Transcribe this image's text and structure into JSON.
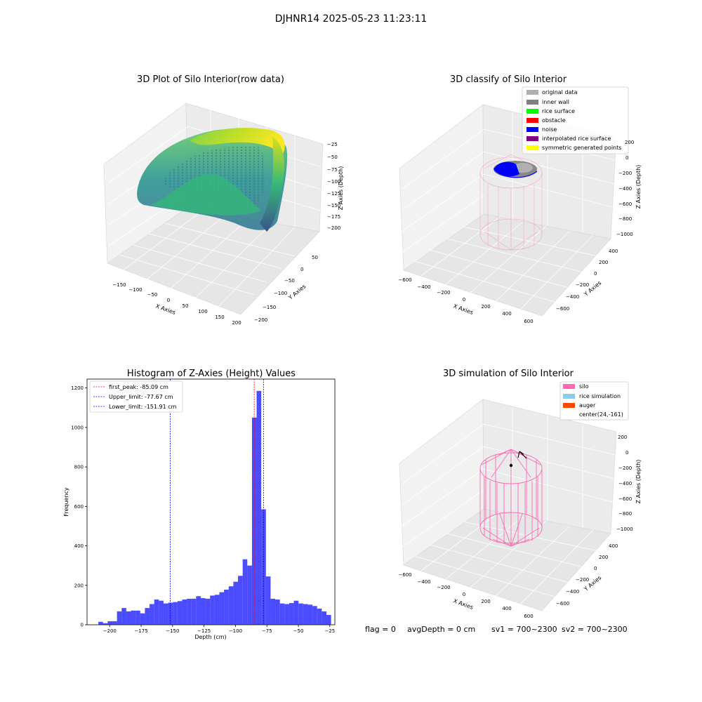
{
  "suptitle": "DJHNR14 2025-05-23 11:23:11",
  "status": {
    "flag": "flag = 0",
    "avg_depth": "avgDepth = 0 cm",
    "sv1": "sv1 = 700~2300",
    "sv2": "sv2 = 700~2300"
  },
  "colors": {
    "hist_bar": "#0000ff",
    "silo": "#ff69b4",
    "rice_simulation": "#87ceeb",
    "auger": "#ff4500",
    "original_data": "#b0b0b0",
    "inner_wall": "#808080",
    "rice_surface": "#00ff00",
    "obstacle": "#ff0000",
    "noise": "#0000ff",
    "interpolated_rice_surface": "#800080",
    "symmetric_generated_points": "#ffff00"
  },
  "chart_data": [
    {
      "type": "scatter",
      "projection": "3d",
      "title": "3D Plot of Silo Interior(row data)",
      "xlabel": "X Axies",
      "ylabel": "Y Axies",
      "zlabel": "Z Axies (Depth)",
      "xticks": [
        "−150",
        "−100",
        "−50",
        "0",
        "50",
        "100",
        "150",
        "200"
      ],
      "yticks": [
        "−200",
        "−150",
        "−100",
        "−50",
        "0",
        "50"
      ],
      "zticks": [
        "−25",
        "−50",
        "−75",
        "−100",
        "−125",
        "−150",
        "−175",
        "−200"
      ],
      "colormap": "viridis"
    },
    {
      "type": "scatter",
      "projection": "3d",
      "title": "3D classify of Silo Interior",
      "xlabel": "X Axies",
      "ylabel": "Y Axies",
      "zlabel": "Z Axies (Depth)",
      "xticks": [
        "−600",
        "−400",
        "−200",
        "0",
        "200",
        "400",
        "600"
      ],
      "yticks": [
        "−600",
        "−400",
        "−200",
        "0",
        "200",
        "400"
      ],
      "zticks": [
        "200",
        "0",
        "−200",
        "−400",
        "−600",
        "−800",
        "−1000"
      ],
      "legend": [
        "original data",
        "inner wall",
        "rice surface",
        "obstacle",
        "noise",
        "interpolated rice surface",
        "symmetric generated points"
      ],
      "legend_position": "upper right"
    },
    {
      "type": "bar",
      "title": "Histogram of Z-Axies (Height) Values",
      "xlabel": "Depth (cm)",
      "ylabel": "Frequency",
      "xlim": [
        -218,
        -21
      ],
      "ylim": [
        0,
        1245
      ],
      "xticks": [
        -200,
        -175,
        -150,
        -125,
        -100,
        -75,
        -50,
        -25
      ],
      "xtick_labels": [
        "−200",
        "−175",
        "−150",
        "−125",
        "−100",
        "−75",
        "−50",
        "−25"
      ],
      "yticks": [
        0,
        200,
        400,
        600,
        800,
        1000,
        1200
      ],
      "bin_start": -209,
      "bin_width": 3.7,
      "values": [
        15,
        8,
        18,
        18,
        68,
        85,
        68,
        72,
        72,
        58,
        85,
        105,
        128,
        122,
        108,
        112,
        115,
        120,
        128,
        132,
        132,
        145,
        135,
        132,
        148,
        152,
        165,
        178,
        195,
        218,
        248,
        332,
        300,
        1050,
        1185,
        585,
        245,
        132,
        128,
        108,
        105,
        110,
        122,
        108,
        105,
        102,
        95,
        82,
        68,
        50
      ],
      "vlines": [
        {
          "label": "first_peak: -85.09 cm",
          "x": -85.09,
          "color": "#ff0000"
        },
        {
          "label": "Upper_limit: -77.67 cm",
          "x": -77.67,
          "color": "#0000ff"
        },
        {
          "label": "Lower_limit: -151.91 cm",
          "x": -151.91,
          "color": "#0000ff"
        }
      ],
      "legend_position": "upper left"
    },
    {
      "type": "line",
      "projection": "3d",
      "title": "3D simulation of Silo Interior",
      "xlabel": "X Axies",
      "ylabel": "Y Axies",
      "zlabel": "Z Axies (Depth)",
      "xticks": [
        "−600",
        "−400",
        "−200",
        "0",
        "200",
        "400",
        "600"
      ],
      "yticks": [
        "−600",
        "−400",
        "−200",
        "0",
        "200",
        "400"
      ],
      "zticks": [
        "200",
        "0",
        "−200",
        "−400",
        "−600",
        "−800",
        "−1000"
      ],
      "legend": [
        "silo",
        "rice simulation",
        "auger",
        "center(24,-161)"
      ],
      "legend_position": "upper right"
    }
  ]
}
